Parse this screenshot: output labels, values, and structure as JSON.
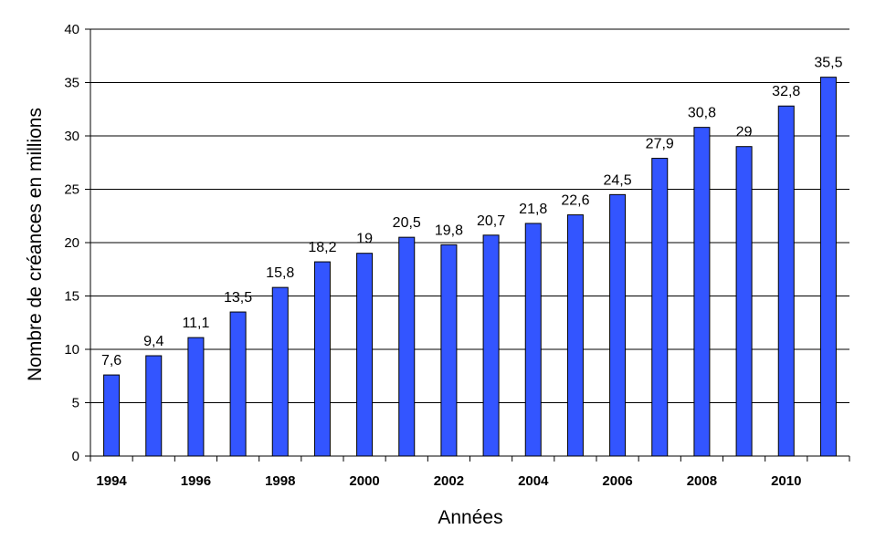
{
  "chart_data": {
    "type": "bar",
    "categories": [
      "1994",
      "1995",
      "1996",
      "1997",
      "1998",
      "1999",
      "2000",
      "2001",
      "2002",
      "2003",
      "2004",
      "2005",
      "2006",
      "2007",
      "2008",
      "2009",
      "2010",
      "2011"
    ],
    "values": [
      7.6,
      9.4,
      11.1,
      13.5,
      15.8,
      18.2,
      19,
      20.5,
      19.8,
      20.7,
      21.8,
      22.6,
      24.5,
      27.9,
      30.8,
      29,
      32.8,
      35.5
    ],
    "value_labels": [
      "7,6",
      "9,4",
      "11,1",
      "13,5",
      "15,8",
      "18,2",
      "19",
      "20,5",
      "19,8",
      "20,7",
      "21,8",
      "22,6",
      "24,5",
      "27,9",
      "30,8",
      "29",
      "32,8",
      "35,5"
    ],
    "x_tick_labels": [
      "1994",
      "1996",
      "1998",
      "2000",
      "2002",
      "2004",
      "2006",
      "2008",
      "2010"
    ],
    "y_ticks": [
      0,
      5,
      10,
      15,
      20,
      25,
      30,
      35,
      40
    ],
    "title": "",
    "xlabel": "Années",
    "ylabel": "Nombre de créances en millions",
    "ylim": [
      0,
      40
    ],
    "grid": true,
    "bar_color": "#3355ff"
  }
}
